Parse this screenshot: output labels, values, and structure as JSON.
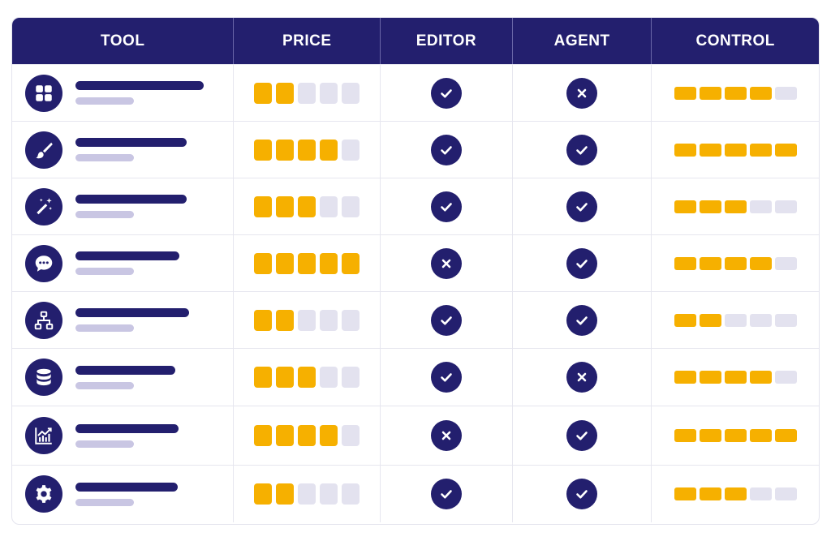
{
  "header": {
    "tool": "TOOL",
    "price": "PRICE",
    "editor": "EDITOR",
    "agent": "AGENT",
    "control": "CONTROL"
  },
  "colors": {
    "navy": "#231f6e",
    "amber": "#f6b000",
    "empty": "#e3e2ef",
    "sub_line": "#c9c6e3"
  },
  "max_price": 5,
  "max_control": 5,
  "rows": [
    {
      "icon": "grid-icon",
      "price": 2,
      "editor": true,
      "agent": false,
      "control": 4
    },
    {
      "icon": "brush-icon",
      "price": 4,
      "editor": true,
      "agent": true,
      "control": 5
    },
    {
      "icon": "magic-wand-icon",
      "price": 3,
      "editor": true,
      "agent": true,
      "control": 3
    },
    {
      "icon": "chat-icon",
      "price": 5,
      "editor": false,
      "agent": true,
      "control": 4
    },
    {
      "icon": "hierarchy-icon",
      "price": 2,
      "editor": true,
      "agent": true,
      "control": 2
    },
    {
      "icon": "database-icon",
      "price": 3,
      "editor": true,
      "agent": false,
      "control": 4
    },
    {
      "icon": "chart-icon",
      "price": 4,
      "editor": false,
      "agent": true,
      "control": 5
    },
    {
      "icon": "gear-icon",
      "price": 2,
      "editor": true,
      "agent": true,
      "control": 3
    }
  ]
}
